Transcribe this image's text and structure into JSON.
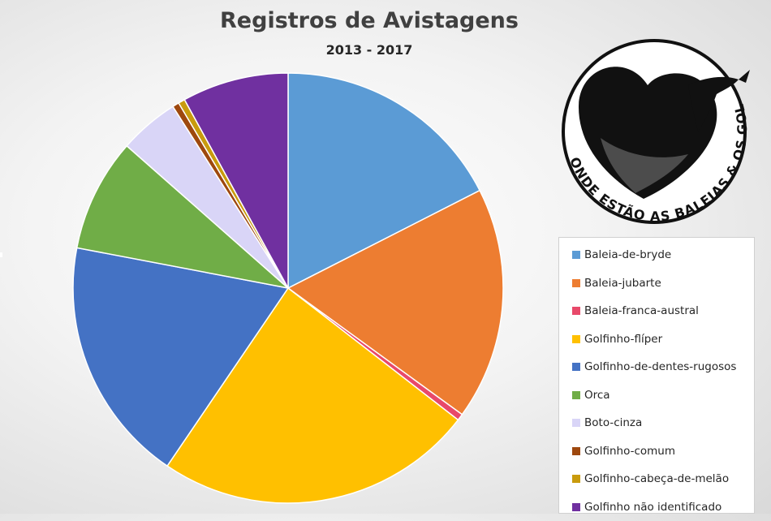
{
  "chart_data": {
    "type": "pie",
    "title": "Registros de Avistagens",
    "subtitle": "2013 - 2017",
    "legend_position": "right",
    "categories": [
      "Baleia-de-bryde",
      "Baleia-jubarte",
      "Baleia-franca-austral",
      "Golfinho-flíper",
      "Golfinho-de-dentes-rugosos",
      "Orca",
      "Boto-cinza",
      "Golfinho-comum",
      "Golfinho-cabeça-de-melão",
      "Golfinho não identificado"
    ],
    "values": [
      17.5,
      17.5,
      0.5,
      24.0,
      18.5,
      8.5,
      4.5,
      0.5,
      0.5,
      8.0
    ],
    "colors": [
      "#5b9bd5",
      "#ed7d31",
      "#e8496a",
      "#ffc000",
      "#4472c4",
      "#70ad47",
      "#d9d5f7",
      "#9e480e",
      "#c99b0d",
      "#7030a0"
    ]
  },
  "logo": {
    "text": "ONDE ESTÃO AS BALEIAS & OS GOLFINHOS?"
  }
}
